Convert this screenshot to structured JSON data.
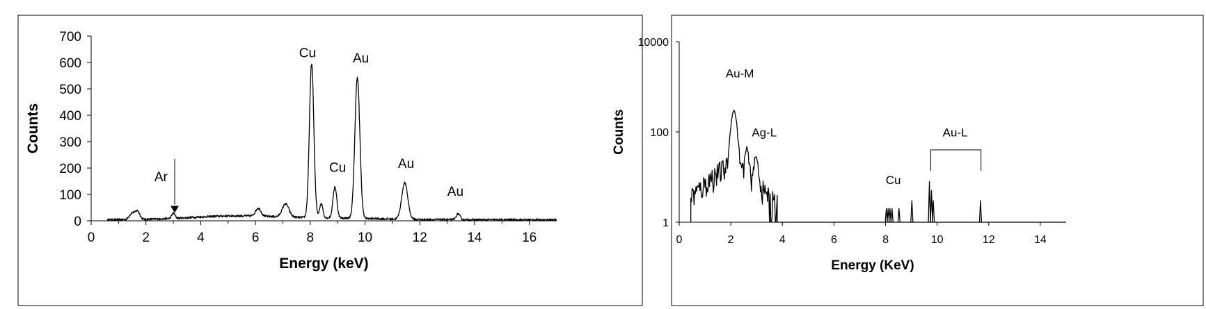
{
  "chart_data": [
    {
      "type": "line",
      "xlabel": "Energy (keV)",
      "ylabel": "Counts",
      "xlim": [
        0,
        17
      ],
      "ylim": [
        0,
        700
      ],
      "xticks": [
        "0",
        "2",
        "4",
        "6",
        "8",
        "10",
        "12",
        "14",
        "16"
      ],
      "yticks": [
        "0",
        "100",
        "200",
        "300",
        "400",
        "500",
        "600",
        "700"
      ],
      "grid": false,
      "annotations": [
        {
          "text": "Ar",
          "x": 2.55,
          "y": 150
        },
        {
          "text": "Cu",
          "x": 7.9,
          "y": 620
        },
        {
          "text": "Au",
          "x": 9.85,
          "y": 600
        },
        {
          "text": "Cu",
          "x": 9.0,
          "y": 185
        },
        {
          "text": "Au",
          "x": 11.5,
          "y": 200
        },
        {
          "text": "Au",
          "x": 13.3,
          "y": 95
        }
      ],
      "arrow": {
        "x": 3.05,
        "from_y": 235,
        "to_y": 62
      },
      "series": [
        {
          "peaks": [
            {
              "x": 1.5,
              "y": 25,
              "w": 0.1
            },
            {
              "x": 1.7,
              "y": 30,
              "w": 0.08
            },
            {
              "x": 3.0,
              "y": 20,
              "w": 0.06
            },
            {
              "x": 6.1,
              "y": 30,
              "w": 0.1
            },
            {
              "x": 7.1,
              "y": 50,
              "w": 0.12
            },
            {
              "x": 8.05,
              "y": 585,
              "w": 0.08
            },
            {
              "x": 8.4,
              "y": 55,
              "w": 0.06
            },
            {
              "x": 8.9,
              "y": 118,
              "w": 0.07
            },
            {
              "x": 9.72,
              "y": 535,
              "w": 0.09
            },
            {
              "x": 11.45,
              "y": 138,
              "w": 0.11
            },
            {
              "x": 13.4,
              "y": 22,
              "w": 0.07
            }
          ]
        }
      ]
    },
    {
      "type": "line",
      "xlabel": "Energy (KeV)",
      "ylabel": "Counts",
      "xlim": [
        0,
        15
      ],
      "ylim": [
        1,
        10000
      ],
      "yscale": "log",
      "xticks": [
        "0",
        "2",
        "4",
        "6",
        "8",
        "10",
        "12",
        "14"
      ],
      "yticks": [
        "1",
        "100",
        "10000"
      ],
      "grid": false,
      "annotations": [
        {
          "text": "Au-M",
          "x": 2.35,
          "y": 1600
        },
        {
          "text": "Ag-L",
          "x": 3.3,
          "y": 80
        },
        {
          "text": "Cu",
          "x": 8.3,
          "y": 7
        },
        {
          "text": "Au-L",
          "x": 10.7,
          "y": 80
        }
      ],
      "bracket": {
        "x1": 9.75,
        "x2": 11.7,
        "y": 40
      },
      "series": [
        {
          "noise": {
            "start": 0.45,
            "end": 3.8
          },
          "peaks": [
            {
              "x": 2.12,
              "y": 280,
              "w": 0.09
            },
            {
              "x": 2.62,
              "y": 30,
              "w": 0.06
            },
            {
              "x": 2.98,
              "y": 20,
              "w": 0.07
            }
          ],
          "spikes": [
            {
              "x": 8.03,
              "y": 2
            },
            {
              "x": 8.1,
              "y": 2
            },
            {
              "x": 8.17,
              "y": 2
            },
            {
              "x": 8.25,
              "y": 2
            },
            {
              "x": 8.52,
              "y": 2
            },
            {
              "x": 9.02,
              "y": 3
            },
            {
              "x": 9.7,
              "y": 8
            },
            {
              "x": 9.78,
              "y": 5
            },
            {
              "x": 9.85,
              "y": 3
            },
            {
              "x": 11.68,
              "y": 3
            }
          ]
        }
      ]
    }
  ]
}
